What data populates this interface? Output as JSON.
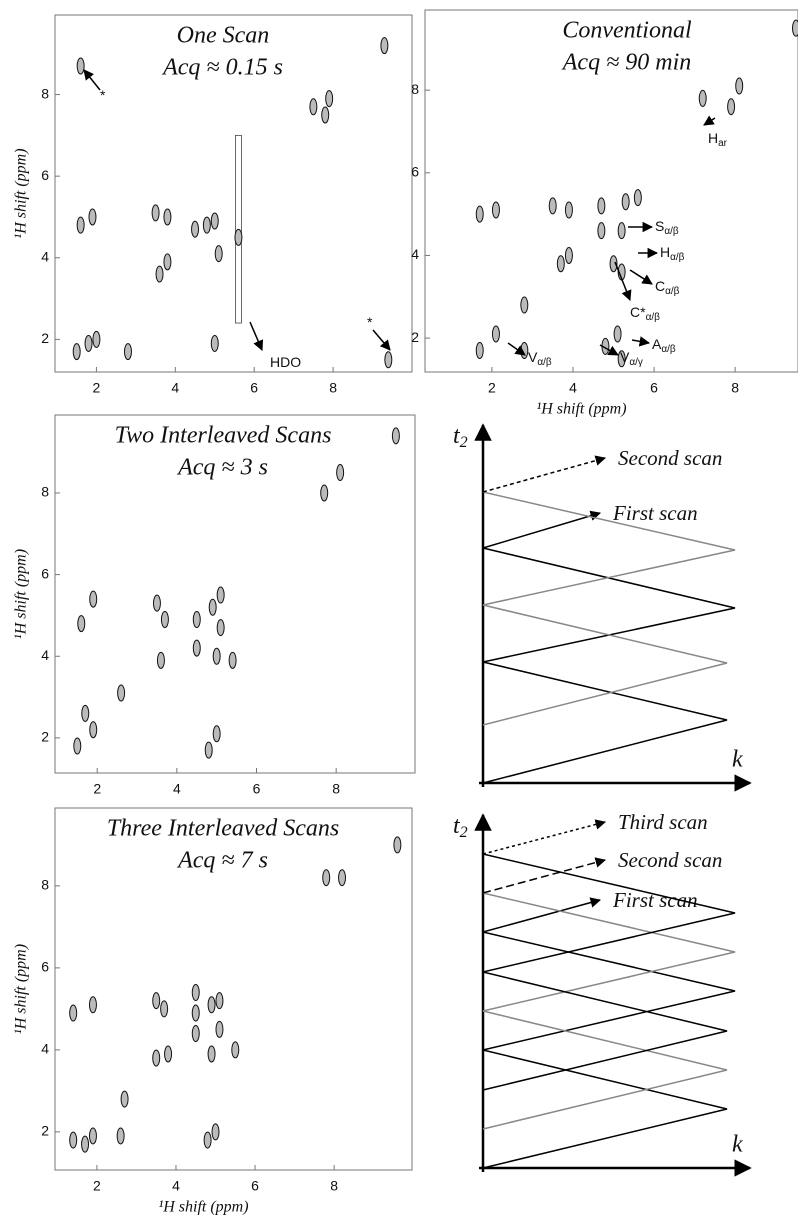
{
  "spectra": [
    {
      "title": [
        "One Scan",
        "Acq ≈ 0.15 s"
      ],
      "y_label": "¹H shift (ppm)",
      "xlim": [
        0.95,
        10
      ],
      "ylim": [
        1.2,
        9.95
      ],
      "xticks": [
        2,
        4,
        6,
        8
      ],
      "yticks": [
        2,
        4,
        6,
        8
      ],
      "annotations": [
        {
          "text": "*"
        },
        {
          "text": "*"
        },
        {
          "text": "HDO"
        }
      ],
      "peaks": {
        "x": [
          1.6,
          9.3,
          7.5,
          7.9,
          7.8,
          1.6,
          1.9,
          3.5,
          3.8,
          4.5,
          4.8,
          5.0,
          3.6,
          3.8,
          5.1,
          5.6,
          1.5,
          1.8,
          2.0,
          2.8,
          5.0,
          9.4
        ],
        "y": [
          8.7,
          9.2,
          7.7,
          7.9,
          7.5,
          4.8,
          5.0,
          5.1,
          5.0,
          4.7,
          4.8,
          4.9,
          3.6,
          3.9,
          4.1,
          4.5,
          1.7,
          1.9,
          2.0,
          1.7,
          1.9,
          1.5
        ]
      }
    },
    {
      "title": [
        "Conventional",
        "Acq ≈ 90 min"
      ],
      "x_label": "¹H shift (ppm)",
      "xlim": [
        0.35,
        9.55
      ],
      "ylim": [
        1.18,
        9.94
      ],
      "xticks": [
        2,
        4,
        6,
        8
      ],
      "yticks": [
        2,
        4,
        6,
        8
      ],
      "annotations": [
        {
          "text": "H",
          "sub": "ar"
        },
        {
          "text": "S",
          "sub": "α/β"
        },
        {
          "text": "H",
          "sub": "α/β"
        },
        {
          "text": "C",
          "sub": "α/β"
        },
        {
          "text": "C*",
          "sub": "α/β"
        },
        {
          "text": "A",
          "sub": "α/β"
        },
        {
          "text": "V",
          "sub": "α/γ"
        },
        {
          "text": "V",
          "sub": "α/β"
        }
      ],
      "peaks": {
        "x": [
          9.5,
          8.1,
          7.9,
          7.2,
          1.7,
          2.1,
          3.5,
          3.9,
          4.7,
          5.3,
          5.6,
          4.7,
          5.2,
          3.7,
          3.9,
          5.0,
          5.2,
          1.7,
          2.1,
          2.8,
          2.8,
          4.8,
          5.1,
          5.2
        ],
        "y": [
          9.5,
          8.1,
          7.6,
          7.8,
          5.0,
          5.1,
          5.2,
          5.1,
          5.2,
          5.3,
          5.4,
          4.6,
          4.6,
          3.8,
          4.0,
          3.8,
          3.6,
          1.7,
          2.1,
          2.8,
          1.7,
          1.8,
          2.1,
          1.5
        ]
      }
    },
    {
      "title": [
        "Two Interleaved Scans",
        "Acq ≈ 3 s"
      ],
      "y_label": "¹H shift (ppm)",
      "xlim": [
        0.94,
        9.98
      ],
      "ylim": [
        1.14,
        9.91
      ],
      "xticks": [
        2,
        4,
        6,
        8
      ],
      "yticks": [
        2,
        4,
        6,
        8
      ],
      "peaks": {
        "x": [
          9.5,
          8.1,
          7.7,
          1.6,
          1.9,
          3.5,
          3.7,
          3.6,
          4.5,
          4.5,
          4.9,
          5.1,
          5.1,
          5.0,
          5.4,
          1.5,
          1.7,
          1.9,
          2.6,
          5.0,
          4.8
        ],
        "y": [
          9.4,
          8.5,
          8.0,
          4.8,
          5.4,
          5.3,
          4.9,
          3.9,
          4.9,
          4.2,
          5.2,
          5.5,
          4.7,
          4.0,
          3.9,
          1.8,
          2.6,
          2.2,
          3.1,
          2.1,
          1.7
        ]
      }
    },
    {
      "title": [
        "Three Interleaved Scans",
        "Acq ≈ 7 s"
      ],
      "y_label": "¹H shift (ppm)",
      "x_label": "¹H shift (ppm)",
      "xlim": [
        0.94,
        9.97
      ],
      "ylim": [
        1.07,
        9.9
      ],
      "xticks": [
        2,
        4,
        6,
        8
      ],
      "yticks": [
        2,
        4,
        6,
        8
      ],
      "peaks": {
        "x": [
          9.6,
          8.2,
          7.8,
          1.4,
          1.9,
          3.5,
          3.7,
          4.5,
          4.5,
          4.5,
          4.9,
          5.1,
          5.1,
          3.5,
          3.8,
          4.9,
          5.5,
          1.4,
          1.7,
          1.9,
          2.6,
          5.0,
          4.8,
          2.7
        ],
        "y": [
          9.0,
          8.2,
          8.2,
          4.9,
          5.1,
          5.2,
          5.0,
          5.4,
          4.9,
          4.4,
          5.1,
          5.2,
          4.5,
          3.8,
          3.9,
          3.9,
          4.0,
          1.8,
          1.7,
          1.9,
          1.9,
          2.0,
          1.8,
          2.8
        ]
      }
    }
  ],
  "diagrams": [
    {
      "y_axis": "t",
      "y_axis_sub": "2",
      "x_axis": "k",
      "scans": [
        "Second scan",
        "First scan"
      ]
    },
    {
      "y_axis": "t",
      "y_axis_sub": "2",
      "x_axis": "k",
      "scans": [
        "Third scan",
        "Second scan",
        "First scan"
      ]
    }
  ]
}
